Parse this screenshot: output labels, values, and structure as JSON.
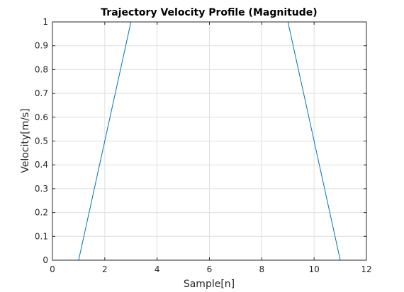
{
  "chart_data": {
    "type": "line",
    "title": "Trajectory Velocity Profile (Magnitude)",
    "xlabel": "Sample[n]",
    "ylabel": "Velocity[m/s]",
    "xlim": [
      0,
      12
    ],
    "ylim": [
      0,
      1
    ],
    "xticks": [
      0,
      2,
      4,
      6,
      8,
      10,
      12
    ],
    "yticks": [
      0,
      0.1,
      0.2,
      0.3,
      0.4,
      0.5,
      0.6,
      0.7,
      0.8,
      0.9,
      1
    ],
    "xtick_labels": [
      "0",
      "2",
      "4",
      "6",
      "8",
      "10",
      "12"
    ],
    "ytick_labels": [
      "0",
      "0.1",
      "0.2",
      "0.3",
      "0.4",
      "0.5",
      "0.6",
      "0.7",
      "0.8",
      "0.9",
      "1"
    ],
    "grid": true,
    "series": [
      {
        "color": "#0072BD",
        "x": [
          1,
          3,
          9,
          11
        ],
        "y": [
          0,
          1,
          1,
          0
        ]
      }
    ]
  }
}
